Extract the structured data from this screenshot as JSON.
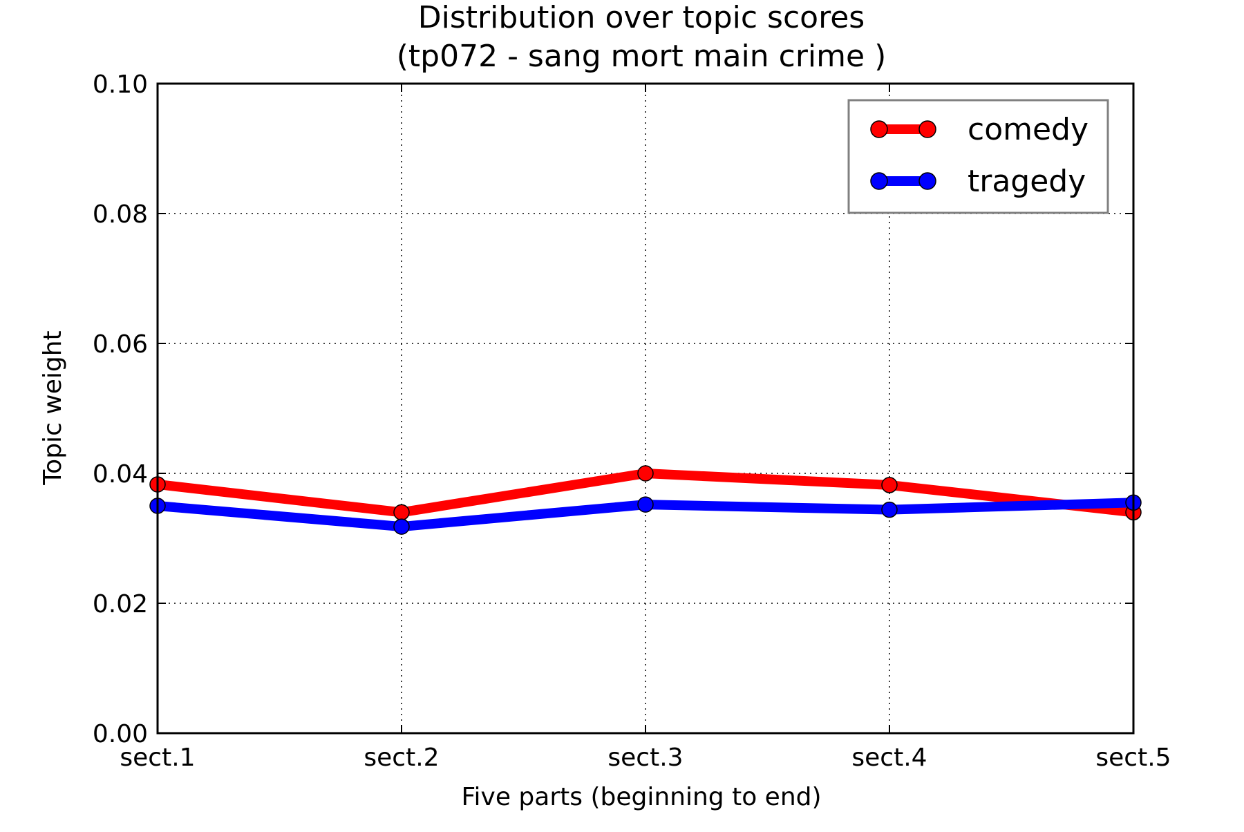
{
  "chart_data": {
    "type": "line",
    "title": "Distribution over topic scores",
    "subtitle": "(tp072 - sang mort main crime )",
    "xlabel": "Five parts (beginning to end)",
    "ylabel": "Topic weight",
    "categories": [
      "sect.1",
      "sect.2",
      "sect.3",
      "sect.4",
      "sect.5"
    ],
    "ylim": [
      0.0,
      0.1
    ],
    "yticks": [
      "0.00",
      "0.02",
      "0.04",
      "0.06",
      "0.08",
      "0.10"
    ],
    "grid": true,
    "legend_position": "top-right",
    "series": [
      {
        "name": "comedy",
        "color": "#ff0000",
        "values": [
          0.0383,
          0.034,
          0.04,
          0.0382,
          0.034
        ]
      },
      {
        "name": "tragedy",
        "color": "#0000ff",
        "values": [
          0.035,
          0.0318,
          0.0352,
          0.0344,
          0.0355
        ]
      }
    ]
  }
}
